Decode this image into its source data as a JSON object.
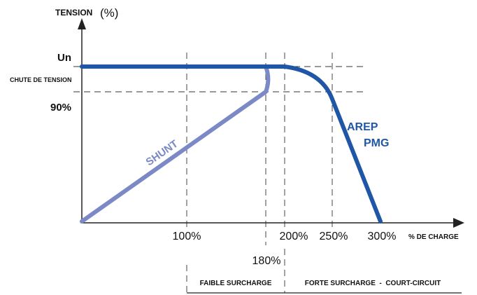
{
  "chart_data": {
    "type": "line",
    "ylabel": "TENSION",
    "ylabel_unit": "(%)",
    "xlabel": "% DE CHARGE",
    "y_tick_labels": {
      "un": "Un",
      "chute": "CHUTE DE TENSION",
      "ninety": "90%"
    },
    "x_ticks": [
      {
        "value": 100,
        "label": "100%"
      },
      {
        "value": 180,
        "label": "180%"
      },
      {
        "value": 200,
        "label": "200%"
      },
      {
        "value": 250,
        "label": "250%"
      },
      {
        "value": 300,
        "label": "300%"
      }
    ],
    "series": [
      {
        "name": "SHUNT",
        "color": "#7b89c6",
        "points": [
          [
            0,
            0
          ],
          [
            180,
            90
          ],
          [
            185,
            95
          ],
          [
            180,
            100
          ],
          [
            0,
            100
          ]
        ]
      },
      {
        "name": "AREP PMG",
        "name_lines": [
          "AREP",
          "PMG"
        ],
        "color": "#1f57a6",
        "points": [
          [
            0,
            100
          ],
          [
            200,
            100
          ],
          [
            235,
            97
          ],
          [
            250,
            85
          ],
          [
            300,
            0
          ]
        ]
      }
    ],
    "zones": [
      {
        "label": "FAIBLE SURCHARGE",
        "from": 100,
        "to": 200
      },
      {
        "label": "FORTE SURCHARGE  -  COURT-CIRCUIT",
        "from": 200,
        "to": 350
      }
    ]
  }
}
